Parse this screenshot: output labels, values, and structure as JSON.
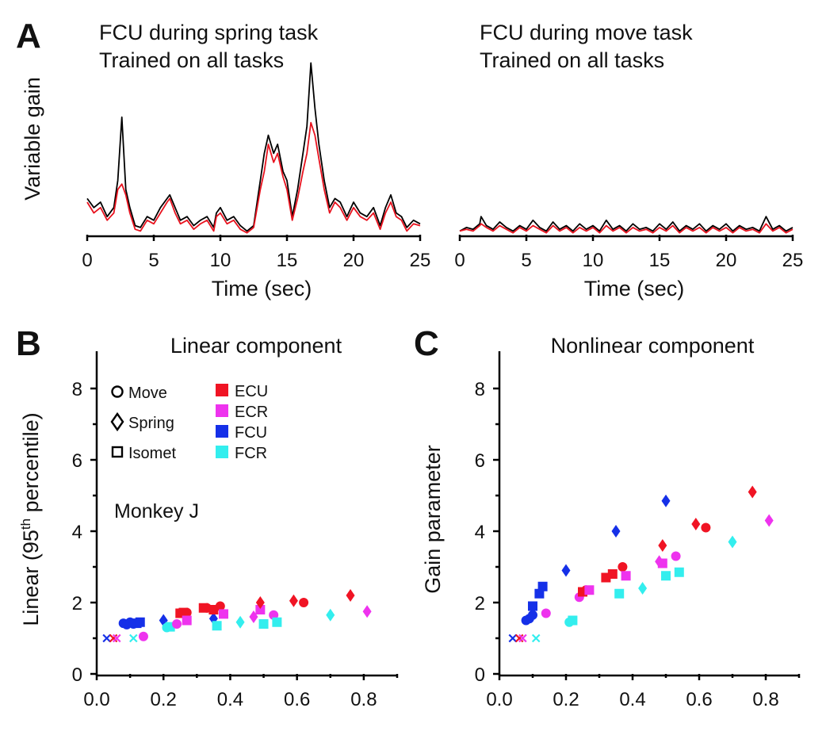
{
  "panel_labels": [
    "A",
    "B",
    "C"
  ],
  "colors": {
    "black_trace": "#000000",
    "red_trace": "#e8121e",
    "ECU": "#f01424",
    "ECR": "#ee33ee",
    "FCU": "#1530e8",
    "FCR": "#33eeee"
  },
  "chart_data": [
    {
      "id": "A-left",
      "type": "line",
      "title_lines": [
        "FCU during spring task",
        "Trained on all tasks"
      ],
      "xlabel": "Time (sec)",
      "ylabel": "Variable gain",
      "xlim": [
        0,
        25
      ],
      "xticks": [
        "0",
        "5",
        "10",
        "15",
        "20",
        "25"
      ],
      "ylim": [
        0,
        1
      ],
      "series": [
        {
          "color": "black",
          "x": [
            0,
            0.5,
            1,
            1.5,
            2,
            2.3,
            2.6,
            2.9,
            3.2,
            3.6,
            4,
            4.5,
            5,
            5.5,
            6,
            6.2,
            6.6,
            7,
            7.5,
            8,
            8.5,
            9,
            9.5,
            9.7,
            10,
            10.5,
            11,
            11.5,
            12,
            12.5,
            13,
            13.3,
            13.6,
            14,
            14.3,
            14.7,
            15,
            15.4,
            15.8,
            16.2,
            16.5,
            16.8,
            17.1,
            17.4,
            17.8,
            18.2,
            18.6,
            19,
            19.5,
            20,
            20.5,
            21,
            21.5,
            22,
            22.4,
            22.8,
            23.2,
            23.6,
            24,
            24.5,
            25
          ],
          "y": [
            0.2,
            0.15,
            0.18,
            0.1,
            0.15,
            0.3,
            0.65,
            0.25,
            0.15,
            0.05,
            0.04,
            0.1,
            0.08,
            0.15,
            0.2,
            0.22,
            0.15,
            0.08,
            0.1,
            0.05,
            0.08,
            0.1,
            0.04,
            0.12,
            0.15,
            0.08,
            0.1,
            0.05,
            0.02,
            0.05,
            0.3,
            0.45,
            0.55,
            0.45,
            0.5,
            0.35,
            0.3,
            0.1,
            0.25,
            0.45,
            0.6,
            0.95,
            0.7,
            0.5,
            0.3,
            0.15,
            0.2,
            0.18,
            0.1,
            0.18,
            0.12,
            0.1,
            0.15,
            0.05,
            0.15,
            0.22,
            0.12,
            0.1,
            0.04,
            0.08,
            0.06
          ]
        },
        {
          "color": "red",
          "x": [
            0,
            0.5,
            1,
            1.5,
            2,
            2.3,
            2.6,
            2.9,
            3.2,
            3.6,
            4,
            4.5,
            5,
            5.5,
            6,
            6.2,
            6.6,
            7,
            7.5,
            8,
            8.5,
            9,
            9.5,
            9.7,
            10,
            10.5,
            11,
            11.5,
            12,
            12.5,
            13,
            13.3,
            13.6,
            14,
            14.3,
            14.7,
            15,
            15.4,
            15.8,
            16.2,
            16.5,
            16.8,
            17.1,
            17.4,
            17.8,
            18.2,
            18.6,
            19,
            19.5,
            20,
            20.5,
            21,
            21.5,
            22,
            22.4,
            22.8,
            23.2,
            23.6,
            24,
            24.5,
            25
          ],
          "y": [
            0.18,
            0.12,
            0.15,
            0.08,
            0.12,
            0.25,
            0.28,
            0.22,
            0.12,
            0.03,
            0.02,
            0.08,
            0.06,
            0.12,
            0.18,
            0.2,
            0.12,
            0.06,
            0.08,
            0.03,
            0.06,
            0.08,
            0.02,
            0.1,
            0.12,
            0.06,
            0.08,
            0.03,
            0.01,
            0.04,
            0.25,
            0.35,
            0.5,
            0.4,
            0.45,
            0.32,
            0.25,
            0.08,
            0.2,
            0.35,
            0.45,
            0.62,
            0.55,
            0.42,
            0.25,
            0.12,
            0.18,
            0.15,
            0.08,
            0.15,
            0.1,
            0.08,
            0.12,
            0.03,
            0.12,
            0.18,
            0.1,
            0.08,
            0.02,
            0.06,
            0.05
          ]
        }
      ]
    },
    {
      "id": "A-right",
      "type": "line",
      "title_lines": [
        "FCU during move task",
        "Trained on all tasks"
      ],
      "xlabel": "Time (sec)",
      "xlim": [
        0,
        25
      ],
      "xticks": [
        "0",
        "5",
        "10",
        "15",
        "20",
        "25"
      ],
      "ylim": [
        0,
        1
      ],
      "series": [
        {
          "color": "black",
          "x": [
            0,
            0.5,
            1,
            1.5,
            1.6,
            2,
            2.5,
            3,
            3.5,
            4,
            4.5,
            5,
            5.5,
            6,
            6.5,
            7,
            7.5,
            8,
            8.5,
            9,
            9.5,
            10,
            10.5,
            11,
            11.5,
            12,
            12.5,
            13,
            13.5,
            14,
            14.5,
            15,
            15.5,
            16,
            16.5,
            17,
            17.5,
            18,
            18.5,
            19,
            19.5,
            20,
            20.5,
            21,
            21.5,
            22,
            22.5,
            23,
            23.5,
            24,
            24.5,
            25
          ],
          "y": [
            0.02,
            0.04,
            0.03,
            0.06,
            0.1,
            0.05,
            0.03,
            0.07,
            0.04,
            0.02,
            0.05,
            0.03,
            0.08,
            0.04,
            0.02,
            0.07,
            0.03,
            0.05,
            0.02,
            0.06,
            0.03,
            0.05,
            0.02,
            0.08,
            0.03,
            0.05,
            0.02,
            0.06,
            0.03,
            0.04,
            0.02,
            0.06,
            0.03,
            0.07,
            0.02,
            0.05,
            0.03,
            0.06,
            0.02,
            0.05,
            0.03,
            0.06,
            0.02,
            0.05,
            0.03,
            0.04,
            0.02,
            0.1,
            0.03,
            0.05,
            0.02,
            0.04
          ]
        },
        {
          "color": "red",
          "x": [
            0,
            0.5,
            1,
            1.5,
            1.6,
            2,
            2.5,
            3,
            3.5,
            4,
            4.5,
            5,
            5.5,
            6,
            6.5,
            7,
            7.5,
            8,
            8.5,
            9,
            9.5,
            10,
            10.5,
            11,
            11.5,
            12,
            12.5,
            13,
            13.5,
            14,
            14.5,
            15,
            15.5,
            16,
            16.5,
            17,
            17.5,
            18,
            18.5,
            19,
            19.5,
            20,
            20.5,
            21,
            21.5,
            22,
            22.5,
            23,
            23.5,
            24,
            24.5,
            25
          ],
          "y": [
            0.02,
            0.03,
            0.02,
            0.05,
            0.06,
            0.04,
            0.02,
            0.05,
            0.03,
            0.01,
            0.04,
            0.02,
            0.05,
            0.03,
            0.01,
            0.05,
            0.02,
            0.04,
            0.01,
            0.04,
            0.02,
            0.04,
            0.01,
            0.05,
            0.02,
            0.04,
            0.01,
            0.04,
            0.02,
            0.03,
            0.01,
            0.04,
            0.02,
            0.05,
            0.01,
            0.04,
            0.02,
            0.04,
            0.01,
            0.04,
            0.02,
            0.04,
            0.01,
            0.04,
            0.02,
            0.03,
            0.01,
            0.06,
            0.02,
            0.04,
            0.01,
            0.03
          ]
        }
      ]
    },
    {
      "id": "B",
      "type": "scatter",
      "title": "Linear component",
      "ylabel_main": "Linear (95",
      "ylabel_sup": "th",
      "ylabel_tail": " percentile)",
      "annotation": "Monkey J",
      "xlim": [
        0,
        0.9
      ],
      "ylim": [
        0,
        9
      ],
      "xticks": [
        "0.0",
        "0.2",
        "0.4",
        "0.6",
        "0.8"
      ],
      "yticks": [
        "0",
        "2",
        "4",
        "6",
        "8"
      ],
      "legend_shapes": [
        {
          "shape": "circle",
          "label": "Move"
        },
        {
          "shape": "diamond",
          "label": "Spring"
        },
        {
          "shape": "square",
          "label": "Isomet"
        }
      ],
      "legend_colors": [
        {
          "muscle": "ECU",
          "label": "ECU"
        },
        {
          "muscle": "ECR",
          "label": "ECR"
        },
        {
          "muscle": "FCU",
          "label": "FCU"
        },
        {
          "muscle": "FCR",
          "label": "FCR"
        }
      ],
      "points": [
        {
          "x": 0.03,
          "y": 1.0,
          "m": "FCU",
          "s": "cross"
        },
        {
          "x": 0.05,
          "y": 1.0,
          "m": "ECU",
          "s": "cross"
        },
        {
          "x": 0.06,
          "y": 1.0,
          "m": "ECR",
          "s": "cross"
        },
        {
          "x": 0.11,
          "y": 1.0,
          "m": "FCR",
          "s": "cross"
        },
        {
          "x": 0.08,
          "y": 1.42,
          "m": "FCU",
          "s": "circle"
        },
        {
          "x": 0.09,
          "y": 1.38,
          "m": "FCU",
          "s": "circle"
        },
        {
          "x": 0.1,
          "y": 1.45,
          "m": "FCU",
          "s": "circle"
        },
        {
          "x": 0.11,
          "y": 1.4,
          "m": "FCU",
          "s": "circle"
        },
        {
          "x": 0.12,
          "y": 1.42,
          "m": "FCU",
          "s": "square"
        },
        {
          "x": 0.13,
          "y": 1.45,
          "m": "FCU",
          "s": "square"
        },
        {
          "x": 0.14,
          "y": 1.05,
          "m": "ECR",
          "s": "circle"
        },
        {
          "x": 0.2,
          "y": 1.5,
          "m": "FCU",
          "s": "diamond"
        },
        {
          "x": 0.21,
          "y": 1.3,
          "m": "FCR",
          "s": "circle"
        },
        {
          "x": 0.22,
          "y": 1.32,
          "m": "FCR",
          "s": "square"
        },
        {
          "x": 0.24,
          "y": 1.4,
          "m": "ECR",
          "s": "circle"
        },
        {
          "x": 0.25,
          "y": 1.7,
          "m": "ECU",
          "s": "square"
        },
        {
          "x": 0.26,
          "y": 1.72,
          "m": "ECU",
          "s": "square"
        },
        {
          "x": 0.27,
          "y": 1.72,
          "m": "ECU",
          "s": "circle"
        },
        {
          "x": 0.27,
          "y": 1.5,
          "m": "ECR",
          "s": "square"
        },
        {
          "x": 0.32,
          "y": 1.85,
          "m": "ECU",
          "s": "square"
        },
        {
          "x": 0.33,
          "y": 1.85,
          "m": "ECU",
          "s": "circle"
        },
        {
          "x": 0.35,
          "y": 1.55,
          "m": "FCU",
          "s": "diamond"
        },
        {
          "x": 0.35,
          "y": 1.8,
          "m": "ECU",
          "s": "square"
        },
        {
          "x": 0.36,
          "y": 1.35,
          "m": "FCR",
          "s": "square"
        },
        {
          "x": 0.37,
          "y": 1.9,
          "m": "ECU",
          "s": "circle"
        },
        {
          "x": 0.38,
          "y": 1.68,
          "m": "ECR",
          "s": "square"
        },
        {
          "x": 0.43,
          "y": 1.45,
          "m": "FCR",
          "s": "diamond"
        },
        {
          "x": 0.47,
          "y": 1.6,
          "m": "ECR",
          "s": "diamond"
        },
        {
          "x": 0.49,
          "y": 1.8,
          "m": "ECR",
          "s": "square"
        },
        {
          "x": 0.49,
          "y": 2.0,
          "m": "ECU",
          "s": "diamond"
        },
        {
          "x": 0.5,
          "y": 1.4,
          "m": "FCR",
          "s": "square"
        },
        {
          "x": 0.53,
          "y": 1.65,
          "m": "ECR",
          "s": "circle"
        },
        {
          "x": 0.54,
          "y": 1.45,
          "m": "FCR",
          "s": "square"
        },
        {
          "x": 0.59,
          "y": 2.05,
          "m": "ECU",
          "s": "diamond"
        },
        {
          "x": 0.62,
          "y": 2.0,
          "m": "ECU",
          "s": "circle"
        },
        {
          "x": 0.7,
          "y": 1.65,
          "m": "FCR",
          "s": "diamond"
        },
        {
          "x": 0.76,
          "y": 2.2,
          "m": "ECU",
          "s": "diamond"
        },
        {
          "x": 0.81,
          "y": 1.75,
          "m": "ECR",
          "s": "diamond"
        }
      ]
    },
    {
      "id": "C",
      "type": "scatter",
      "title": "Nonlinear component",
      "ylabel": "Gain parameter",
      "xlim": [
        0,
        0.9
      ],
      "ylim": [
        0,
        9
      ],
      "xticks": [
        "0.0",
        "0.2",
        "0.4",
        "0.6",
        "0.8"
      ],
      "yticks": [
        "0",
        "2",
        "4",
        "6",
        "8"
      ],
      "points": [
        {
          "x": 0.04,
          "y": 1.0,
          "m": "FCU",
          "s": "cross"
        },
        {
          "x": 0.06,
          "y": 1.0,
          "m": "ECU",
          "s": "cross"
        },
        {
          "x": 0.07,
          "y": 1.0,
          "m": "ECR",
          "s": "cross"
        },
        {
          "x": 0.11,
          "y": 1.0,
          "m": "FCR",
          "s": "cross"
        },
        {
          "x": 0.08,
          "y": 1.5,
          "m": "FCU",
          "s": "circle"
        },
        {
          "x": 0.09,
          "y": 1.55,
          "m": "FCU",
          "s": "circle"
        },
        {
          "x": 0.1,
          "y": 1.65,
          "m": "FCU",
          "s": "circle"
        },
        {
          "x": 0.1,
          "y": 1.9,
          "m": "FCU",
          "s": "square"
        },
        {
          "x": 0.12,
          "y": 2.25,
          "m": "FCU",
          "s": "square"
        },
        {
          "x": 0.13,
          "y": 2.45,
          "m": "FCU",
          "s": "square"
        },
        {
          "x": 0.14,
          "y": 1.7,
          "m": "ECR",
          "s": "circle"
        },
        {
          "x": 0.2,
          "y": 2.9,
          "m": "FCU",
          "s": "diamond"
        },
        {
          "x": 0.21,
          "y": 1.45,
          "m": "FCR",
          "s": "circle"
        },
        {
          "x": 0.22,
          "y": 1.5,
          "m": "FCR",
          "s": "square"
        },
        {
          "x": 0.24,
          "y": 2.15,
          "m": "ECR",
          "s": "circle"
        },
        {
          "x": 0.25,
          "y": 2.3,
          "m": "ECU",
          "s": "square"
        },
        {
          "x": 0.26,
          "y": 2.35,
          "m": "ECU",
          "s": "circle"
        },
        {
          "x": 0.27,
          "y": 2.35,
          "m": "ECR",
          "s": "square"
        },
        {
          "x": 0.32,
          "y": 2.7,
          "m": "ECU",
          "s": "square"
        },
        {
          "x": 0.34,
          "y": 2.8,
          "m": "ECU",
          "s": "square"
        },
        {
          "x": 0.35,
          "y": 4.0,
          "m": "FCU",
          "s": "diamond"
        },
        {
          "x": 0.36,
          "y": 2.25,
          "m": "FCR",
          "s": "square"
        },
        {
          "x": 0.37,
          "y": 3.0,
          "m": "ECU",
          "s": "circle"
        },
        {
          "x": 0.38,
          "y": 2.75,
          "m": "ECR",
          "s": "square"
        },
        {
          "x": 0.43,
          "y": 2.4,
          "m": "FCR",
          "s": "diamond"
        },
        {
          "x": 0.48,
          "y": 3.15,
          "m": "ECR",
          "s": "diamond"
        },
        {
          "x": 0.49,
          "y": 3.1,
          "m": "ECR",
          "s": "square"
        },
        {
          "x": 0.49,
          "y": 3.6,
          "m": "ECU",
          "s": "diamond"
        },
        {
          "x": 0.5,
          "y": 4.85,
          "m": "FCU",
          "s": "diamond"
        },
        {
          "x": 0.5,
          "y": 2.75,
          "m": "FCR",
          "s": "square"
        },
        {
          "x": 0.53,
          "y": 3.3,
          "m": "ECR",
          "s": "circle"
        },
        {
          "x": 0.54,
          "y": 2.85,
          "m": "FCR",
          "s": "square"
        },
        {
          "x": 0.59,
          "y": 4.2,
          "m": "ECU",
          "s": "diamond"
        },
        {
          "x": 0.62,
          "y": 4.1,
          "m": "ECU",
          "s": "circle"
        },
        {
          "x": 0.7,
          "y": 3.7,
          "m": "FCR",
          "s": "diamond"
        },
        {
          "x": 0.76,
          "y": 5.1,
          "m": "ECU",
          "s": "diamond"
        },
        {
          "x": 0.81,
          "y": 4.3,
          "m": "ECR",
          "s": "diamond"
        }
      ]
    }
  ]
}
